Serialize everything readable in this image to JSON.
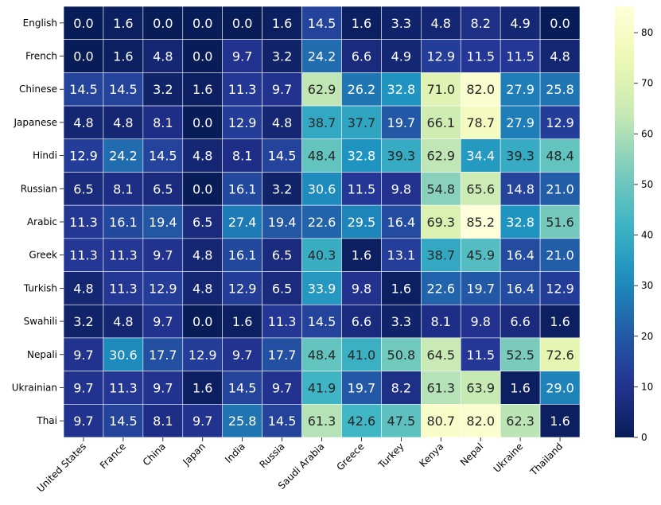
{
  "chart_data": {
    "type": "heatmap",
    "title": "",
    "xlabel": "",
    "ylabel": "",
    "rows": [
      "English",
      "French",
      "Chinese",
      "Japanese",
      "Hindi",
      "Russian",
      "Arabic",
      "Greek",
      "Turkish",
      "Swahili",
      "Nepali",
      "Ukrainian",
      "Thai"
    ],
    "columns": [
      "United States",
      "France",
      "China",
      "Japan",
      "India",
      "Russia",
      "Saudi Arabia",
      "Greece",
      "Turkey",
      "Kenya",
      "Nepal",
      "Ukraine",
      "Thailand"
    ],
    "values": [
      [
        0.0,
        1.6,
        0.0,
        0.0,
        0.0,
        1.6,
        14.5,
        1.6,
        3.3,
        4.8,
        8.2,
        4.9,
        0.0
      ],
      [
        0.0,
        1.6,
        4.8,
        0.0,
        9.7,
        3.2,
        24.2,
        6.6,
        4.9,
        12.9,
        11.5,
        11.5,
        4.8
      ],
      [
        14.5,
        14.5,
        3.2,
        1.6,
        11.3,
        9.7,
        62.9,
        26.2,
        32.8,
        71.0,
        82.0,
        27.9,
        25.8
      ],
      [
        4.8,
        4.8,
        8.1,
        0.0,
        12.9,
        4.8,
        38.7,
        37.7,
        19.7,
        66.1,
        78.7,
        27.9,
        12.9
      ],
      [
        12.9,
        24.2,
        14.5,
        4.8,
        8.1,
        14.5,
        48.4,
        32.8,
        39.3,
        62.9,
        34.4,
        39.3,
        48.4
      ],
      [
        6.5,
        8.1,
        6.5,
        0.0,
        16.1,
        3.2,
        30.6,
        11.5,
        9.8,
        54.8,
        65.6,
        14.8,
        21.0
      ],
      [
        11.3,
        16.1,
        19.4,
        6.5,
        27.4,
        19.4,
        22.6,
        29.5,
        16.4,
        69.3,
        85.2,
        32.8,
        51.6
      ],
      [
        11.3,
        11.3,
        9.7,
        4.8,
        16.1,
        6.5,
        40.3,
        1.6,
        13.1,
        38.7,
        45.9,
        16.4,
        21.0
      ],
      [
        4.8,
        11.3,
        12.9,
        4.8,
        12.9,
        6.5,
        33.9,
        9.8,
        1.6,
        22.6,
        19.7,
        16.4,
        12.9
      ],
      [
        3.2,
        4.8,
        9.7,
        0.0,
        1.6,
        11.3,
        14.5,
        6.6,
        3.3,
        8.1,
        9.8,
        6.6,
        1.6
      ],
      [
        9.7,
        30.6,
        17.7,
        12.9,
        9.7,
        17.7,
        48.4,
        41.0,
        50.8,
        64.5,
        11.5,
        52.5,
        72.6
      ],
      [
        9.7,
        11.3,
        9.7,
        1.6,
        14.5,
        9.7,
        41.9,
        19.7,
        8.2,
        61.3,
        63.9,
        1.6,
        29.0
      ],
      [
        9.7,
        14.5,
        8.1,
        9.7,
        25.8,
        14.5,
        61.3,
        42.6,
        47.5,
        80.7,
        82.0,
        62.3,
        1.6
      ]
    ],
    "value_range": [
      0,
      85.2
    ],
    "colormap": "YlGnBu",
    "colorbar": {
      "ticks": [
        0,
        10,
        20,
        30,
        40,
        50,
        60,
        70,
        80
      ],
      "position": "right"
    },
    "grid": false
  }
}
